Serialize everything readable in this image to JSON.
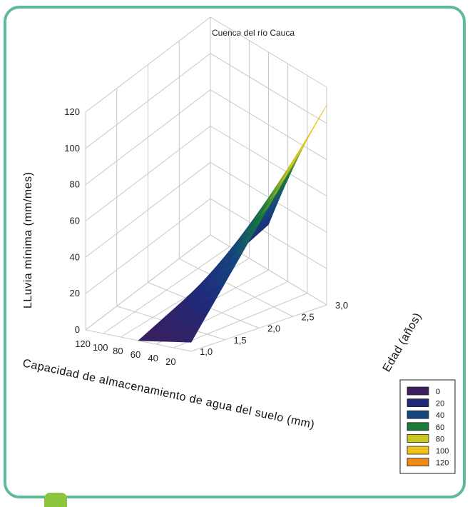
{
  "chart_data": {
    "type": "surface3d",
    "title": "Cuenca del río Cauca",
    "zlabel": "LLuvia mínima (mm/mes)",
    "xlabel": "Capacidad de  almacenamiento de agua del suelo (mm)",
    "ylabel": "Edad (años)",
    "z_ticks": [
      "0",
      "20",
      "40",
      "60",
      "80",
      "100",
      "120"
    ],
    "x_ticks": [
      "120",
      "100",
      "80",
      "60",
      "40",
      "20"
    ],
    "y_ticks": [
      "1,0",
      "1,5",
      "2,0",
      "2,5",
      "3,0"
    ],
    "xlim": [
      120,
      0
    ],
    "ylim": [
      1.0,
      3.0
    ],
    "zlim": [
      0,
      120
    ],
    "surface": {
      "x_range": [
        60,
        0
      ],
      "y_range": [
        1.0,
        3.0
      ],
      "z_corners": {
        "x60_y1": 0,
        "x60_y3": 25,
        "x0_y1": 5,
        "x0_y3": 110
      }
    },
    "legend": {
      "placement": "bottom-right",
      "entries": [
        {
          "label": "0",
          "color": "#3b1f5e"
        },
        {
          "label": "20",
          "color": "#1f2a7a"
        },
        {
          "label": "40",
          "color": "#14477e"
        },
        {
          "label": "60",
          "color": "#1a7a3a"
        },
        {
          "label": "80",
          "color": "#c8c81e"
        },
        {
          "label": "100",
          "color": "#f0c21a"
        },
        {
          "label": "120",
          "color": "#f08a1a"
        }
      ]
    }
  }
}
